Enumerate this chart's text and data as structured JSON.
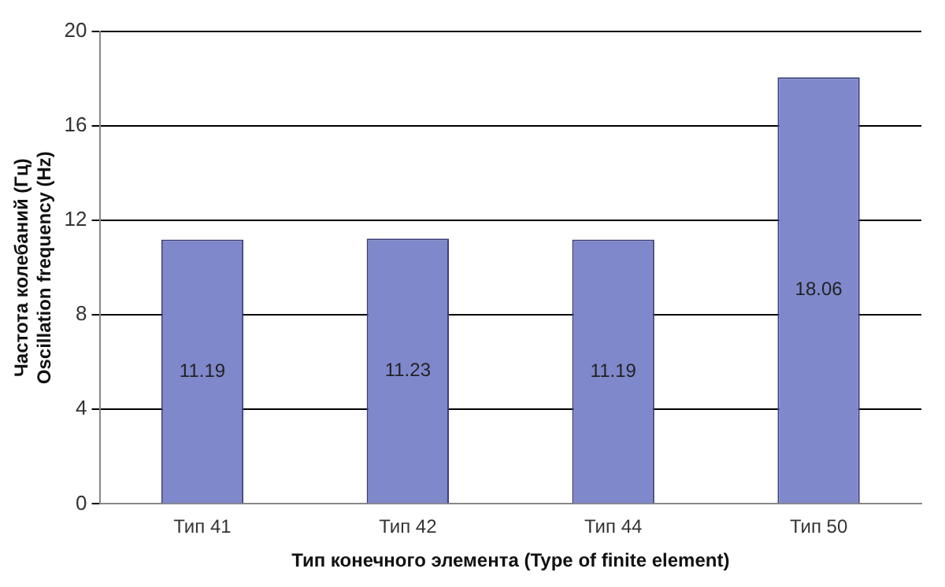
{
  "chart_data": {
    "type": "bar",
    "xlabel": "Тип конечного элемента (Type of finite element)",
    "ylabel": "Частота колебаний (Гц)\nOscillation frequency (Hz)",
    "categories": [
      "Тип 41",
      "Тип 42",
      "Тип 44",
      "Тип 50"
    ],
    "values": [
      11.19,
      11.23,
      11.19,
      18.06
    ],
    "color": "#8088cc",
    "ylim": [
      0,
      20
    ],
    "yticks": [
      0,
      4,
      8,
      12,
      16,
      20
    ],
    "grid": "y",
    "data_labels": true,
    "legend": false
  }
}
